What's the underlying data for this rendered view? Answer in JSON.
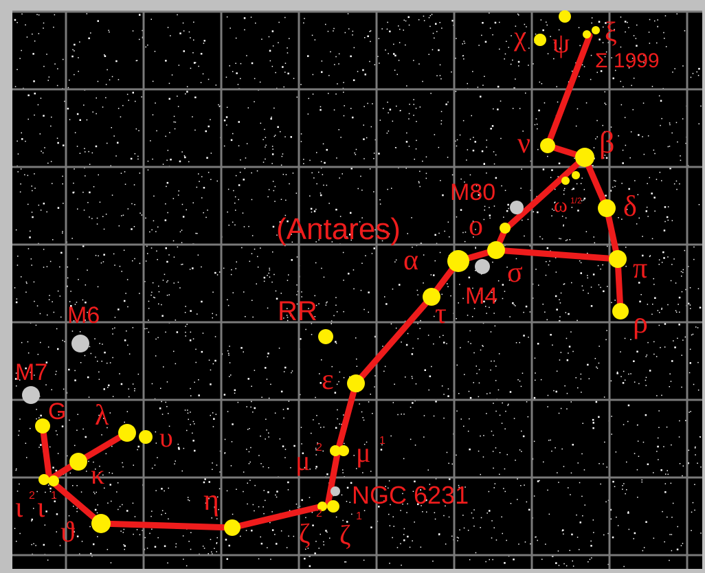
{
  "colors": {
    "background": "#000000",
    "grid": "#7a7a7a",
    "lines": "#ee1c1c",
    "star": "#ffee00",
    "deep_sky": "#c8c8c8",
    "labels": "#ee1c1c",
    "frame": "#c0c0c0"
  },
  "labels": {
    "antares": "(Antares)",
    "m80": "M80",
    "m4": "M4",
    "m6": "M6",
    "m7": "M7",
    "rr": "RR",
    "ngc6231": "NGC 6231",
    "sigma1999": "Σ 1999",
    "chi": "χ",
    "psi": "ψ",
    "xi": "ξ",
    "nu": "ν",
    "beta": "β",
    "omega": "ω",
    "omega_sup": "1/2",
    "delta": "δ",
    "omicron": "ο",
    "alpha": "α",
    "sigma": "σ",
    "pi": "π",
    "tau": "τ",
    "rho": "ρ",
    "epsilon": "ε",
    "mu_left": "μ",
    "mu_left_sup": "2",
    "mu_right": "μ",
    "mu_right_sup": "1",
    "g": "G",
    "lambda": "λ",
    "upsilon": "υ",
    "kappa": "κ",
    "iota2": "ι",
    "iota2_sup": "2",
    "iota1": "ι",
    "iota1_sup": "1",
    "theta": "ϑ",
    "eta": "η",
    "zeta2": "ζ",
    "zeta2_sup": "2",
    "zeta1": "ζ",
    "zeta1_sup": "1"
  }
}
